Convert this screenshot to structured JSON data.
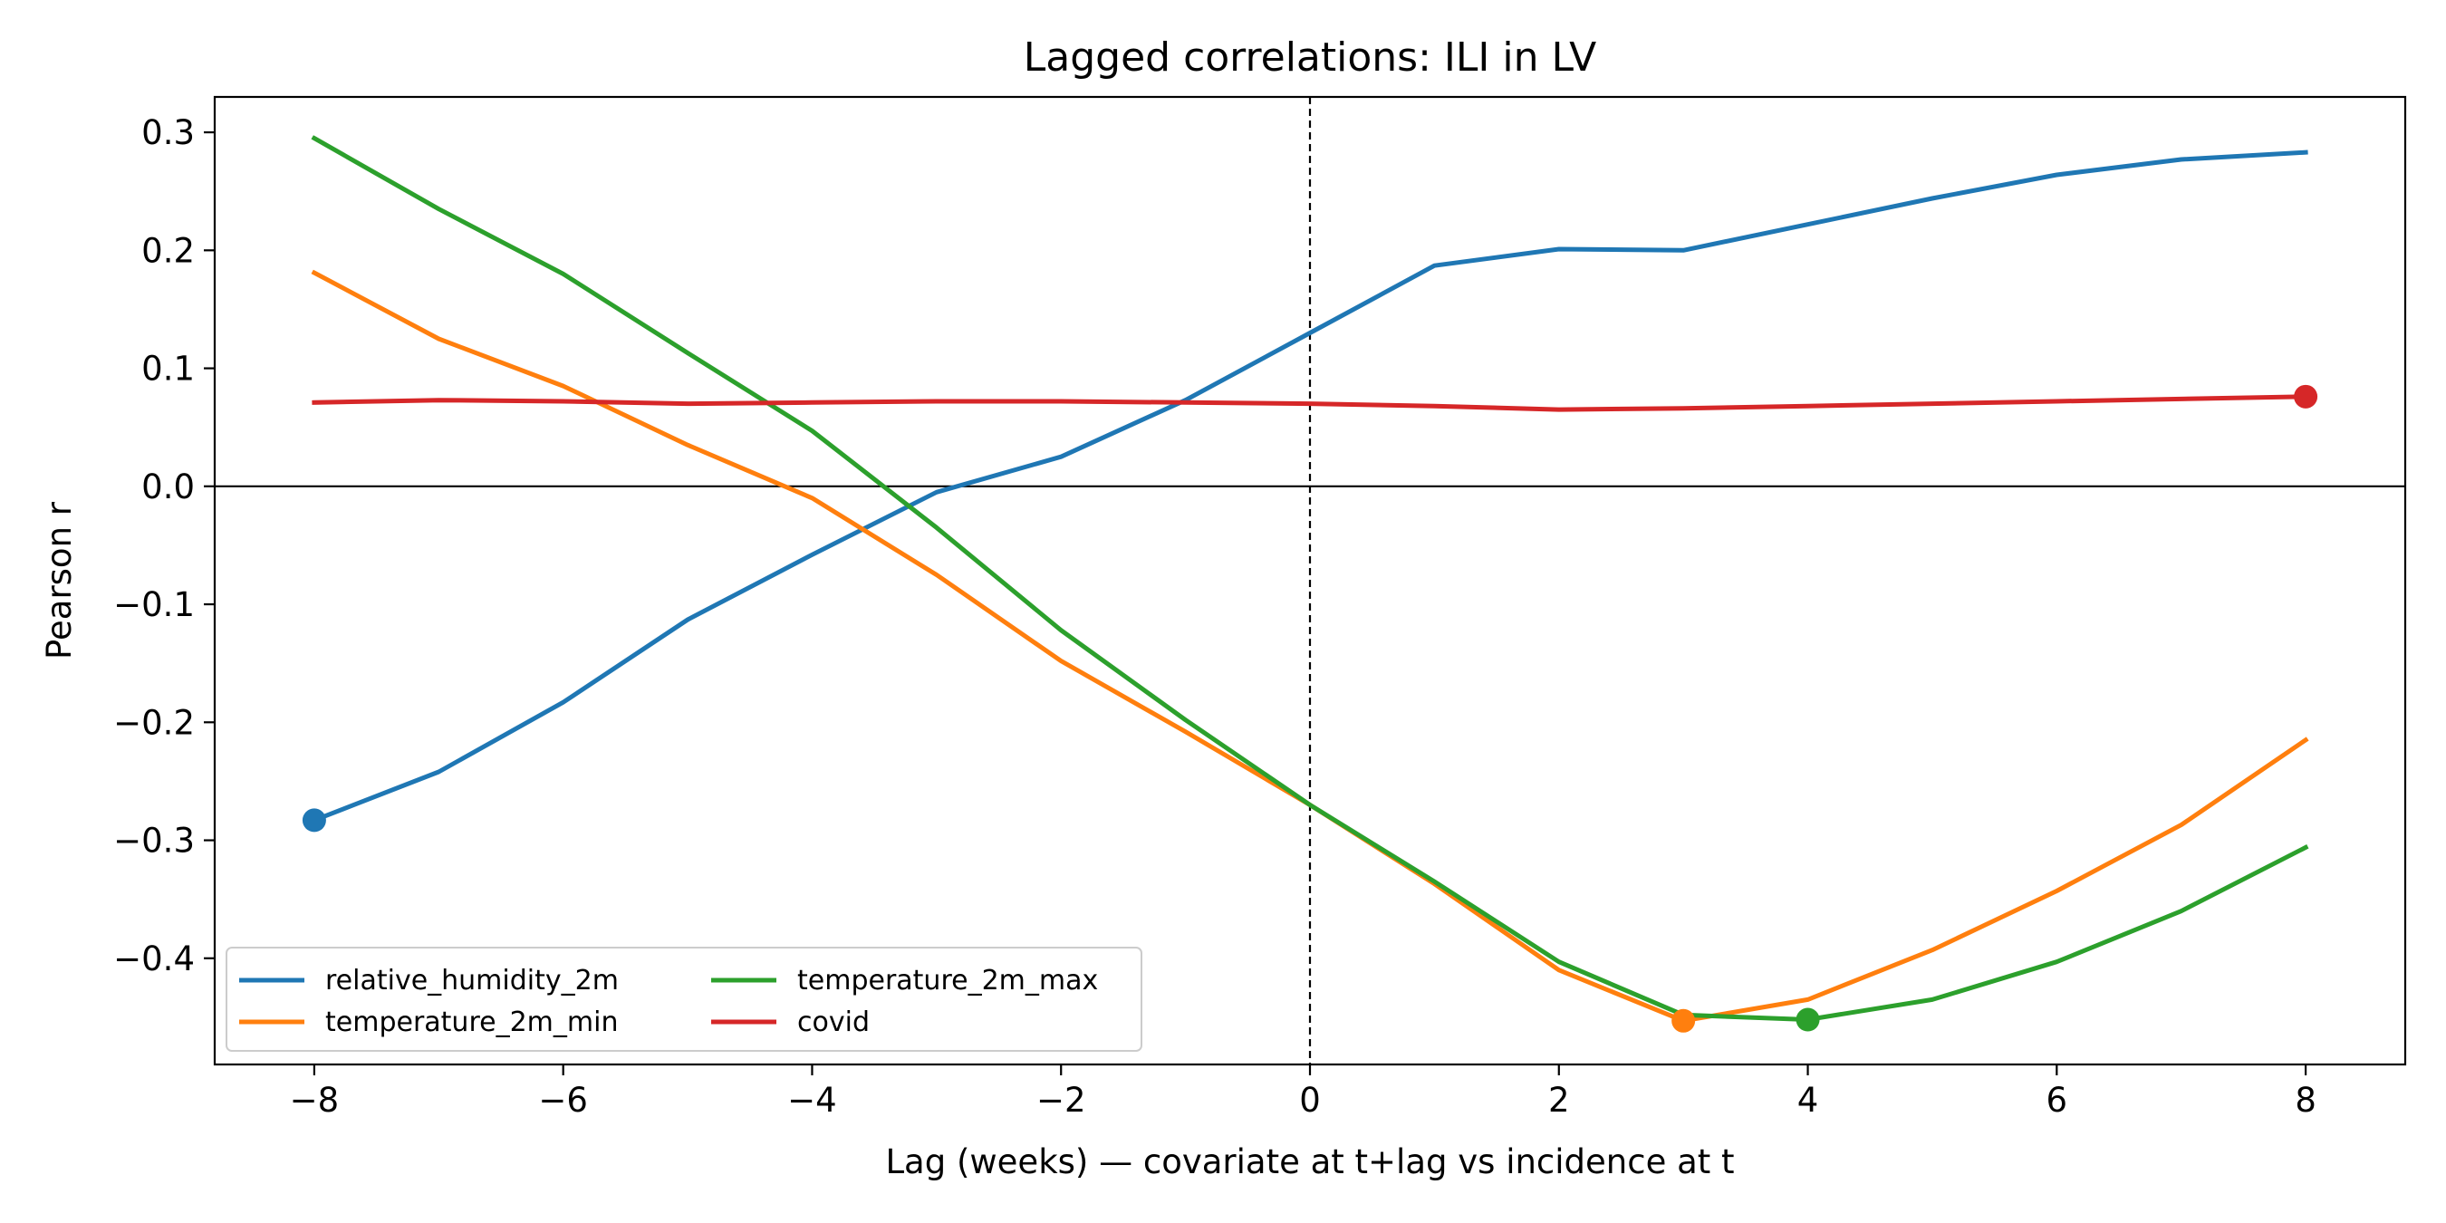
{
  "chart_data": {
    "type": "line",
    "title": "Lagged correlations: ILI in LV",
    "xlabel": "Lag (weeks) — covariate at t+lag vs incidence at t",
    "ylabel": "Pearson r",
    "xlim": [
      -8.8,
      8.8
    ],
    "ylim": [
      -0.49,
      0.33
    ],
    "xticks": [
      -8,
      -6,
      -4,
      -2,
      0,
      2,
      4,
      6,
      8
    ],
    "xtick_labels": [
      "−8",
      "−6",
      "−4",
      "−2",
      "0",
      "2",
      "4",
      "6",
      "8"
    ],
    "yticks": [
      0.3,
      0.2,
      0.1,
      0.0,
      -0.1,
      -0.2,
      -0.3,
      -0.4
    ],
    "ytick_labels": [
      "0.3",
      "0.2",
      "0.1",
      "0.0",
      "−0.1",
      "−0.2",
      "−0.3",
      "−0.4"
    ],
    "grid": false,
    "reference_lines": {
      "horizontal_y": 0.0,
      "vertical_x": 0
    },
    "legend": {
      "placement": "lower-left",
      "columns": 2
    },
    "x": [
      -8,
      -7,
      -6,
      -5,
      -4,
      -3,
      -2,
      -1,
      0,
      1,
      2,
      3,
      4,
      5,
      6,
      7,
      8
    ],
    "series": [
      {
        "name": "relative_humidity_2m",
        "color": "#1f77b4",
        "values": [
          -0.283,
          -0.242,
          -0.183,
          -0.113,
          -0.058,
          -0.005,
          0.025,
          0.073,
          0.13,
          0.187,
          0.201,
          0.2,
          0.222,
          0.244,
          0.264,
          0.277,
          0.283
        ],
        "marker_x": -8,
        "marker_y": -0.283
      },
      {
        "name": "temperature_2m_min",
        "color": "#ff7f0e",
        "values": [
          0.181,
          0.125,
          0.085,
          0.035,
          -0.01,
          -0.075,
          -0.148,
          -0.208,
          -0.27,
          -0.337,
          -0.41,
          -0.453,
          -0.435,
          -0.393,
          -0.343,
          -0.287,
          -0.215
        ],
        "marker_x": 3,
        "marker_y": -0.453
      },
      {
        "name": "temperature_2m_max",
        "color": "#2ca02c",
        "values": [
          0.295,
          0.235,
          0.18,
          0.113,
          0.047,
          -0.035,
          -0.122,
          -0.198,
          -0.27,
          -0.335,
          -0.403,
          -0.448,
          -0.452,
          -0.435,
          -0.403,
          -0.36,
          -0.306
        ],
        "marker_x": 4,
        "marker_y": -0.452
      },
      {
        "name": "covid",
        "color": "#d62728",
        "values": [
          0.071,
          0.073,
          0.072,
          0.07,
          0.071,
          0.072,
          0.072,
          0.071,
          0.07,
          0.068,
          0.065,
          0.066,
          0.068,
          0.07,
          0.072,
          0.074,
          0.076
        ],
        "marker_x": 8,
        "marker_y": 0.076
      }
    ]
  }
}
